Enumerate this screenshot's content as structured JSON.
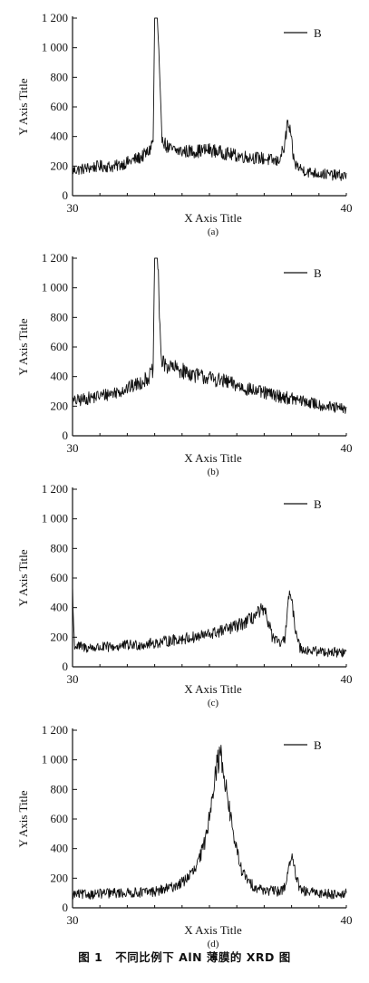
{
  "chart_data": [
    {
      "type": "line",
      "panel_label": "(a)",
      "xlabel": "X Axis Title",
      "ylabel": "Y Axis Title",
      "xlim": [
        30,
        40
      ],
      "ylim": [
        0,
        1200
      ],
      "xticks": [
        "30",
        "40"
      ],
      "yticks": [
        "0",
        "200",
        "400",
        "600",
        "800",
        "1 000",
        "1 200"
      ],
      "legend": "top-right",
      "series": [
        {
          "name": "B",
          "color": "#111111",
          "x": [
            30.0,
            30.5,
            31.0,
            31.5,
            32.0,
            32.5,
            32.8,
            32.95,
            33.0,
            33.1,
            33.25,
            33.4,
            33.6,
            34.0,
            34.5,
            35.0,
            35.5,
            36.0,
            36.5,
            37.0,
            37.5,
            37.75,
            37.85,
            37.95,
            38.1,
            38.3,
            38.6,
            39.0,
            39.5,
            40.0
          ],
          "y": [
            170,
            185,
            200,
            195,
            225,
            260,
            300,
            380,
            1200,
            1200,
            420,
            340,
            310,
            300,
            300,
            310,
            290,
            270,
            260,
            250,
            230,
            330,
            500,
            420,
            220,
            185,
            160,
            150,
            140,
            135
          ]
        }
      ]
    },
    {
      "type": "line",
      "panel_label": "(b)",
      "xlabel": "X Axis Title",
      "ylabel": "Y Axis Title",
      "xlim": [
        30,
        40
      ],
      "ylim": [
        0,
        1200
      ],
      "xticks": [
        "30",
        "40"
      ],
      "yticks": [
        "0",
        "200",
        "400",
        "600",
        "800",
        "1 000",
        "1 200"
      ],
      "legend": "top-right",
      "series": [
        {
          "name": "B",
          "color": "#111111",
          "x": [
            30.0,
            30.5,
            31.0,
            31.5,
            32.0,
            32.5,
            32.8,
            32.95,
            33.0,
            33.1,
            33.25,
            33.5,
            34.0,
            34.5,
            35.0,
            35.5,
            36.0,
            36.5,
            37.0,
            37.5,
            38.0,
            38.5,
            39.0,
            39.5,
            40.0
          ],
          "y": [
            230,
            250,
            270,
            290,
            320,
            360,
            400,
            450,
            1200,
            1200,
            490,
            470,
            440,
            410,
            390,
            370,
            340,
            310,
            290,
            270,
            250,
            230,
            210,
            190,
            180
          ]
        }
      ]
    },
    {
      "type": "line",
      "panel_label": "(c)",
      "xlabel": "X Axis Title",
      "ylabel": "Y Axis Title",
      "xlim": [
        30,
        40
      ],
      "ylim": [
        0,
        1200
      ],
      "xticks": [
        "30",
        "40"
      ],
      "yticks": [
        "0",
        "200",
        "400",
        "600",
        "800",
        "1 000",
        "1 200"
      ],
      "legend": "top-right",
      "series": [
        {
          "name": "B",
          "color": "#111111",
          "x": [
            30.0,
            30.03,
            30.08,
            30.5,
            31.0,
            31.5,
            32.0,
            32.5,
            33.0,
            33.5,
            34.0,
            34.5,
            35.0,
            35.5,
            36.0,
            36.5,
            36.9,
            37.1,
            37.3,
            37.5,
            37.75,
            37.85,
            37.95,
            38.1,
            38.3,
            38.6,
            39.0,
            39.5,
            40.0
          ],
          "y": [
            550,
            300,
            140,
            130,
            130,
            135,
            145,
            150,
            160,
            175,
            190,
            200,
            220,
            245,
            275,
            320,
            380,
            340,
            200,
            160,
            170,
            420,
            500,
            300,
            130,
            110,
            105,
            100,
            95
          ]
        }
      ]
    },
    {
      "type": "line",
      "panel_label": "(d)",
      "xlabel": "X Axis Title",
      "ylabel": "Y Axis Title",
      "xlim": [
        30,
        40
      ],
      "ylim": [
        0,
        1200
      ],
      "xticks": [
        "30",
        "40"
      ],
      "yticks": [
        "0",
        "200",
        "400",
        "600",
        "800",
        "1 000",
        "1 200"
      ],
      "legend": "top-right",
      "series": [
        {
          "name": "B",
          "color": "#111111",
          "x": [
            30.0,
            30.5,
            31.0,
            31.5,
            32.0,
            32.5,
            33.0,
            33.5,
            34.0,
            34.5,
            34.8,
            35.0,
            35.1,
            35.2,
            35.3,
            35.4,
            35.5,
            35.6,
            35.8,
            36.0,
            36.2,
            36.5,
            36.8,
            37.2,
            37.6,
            37.8,
            37.9,
            38.0,
            38.1,
            38.3,
            38.6,
            39.0,
            39.5,
            40.0
          ],
          "y": [
            90,
            90,
            95,
            100,
            100,
            105,
            110,
            130,
            170,
            260,
            420,
            620,
            780,
            880,
            980,
            1040,
            960,
            820,
            580,
            380,
            240,
            160,
            130,
            115,
            110,
            160,
            300,
            340,
            260,
            120,
            105,
            100,
            95,
            95
          ]
        }
      ]
    }
  ],
  "caption": {
    "figure_number": "图 1",
    "text": "不同比例下 AlN 薄膜的 XRD 图"
  }
}
